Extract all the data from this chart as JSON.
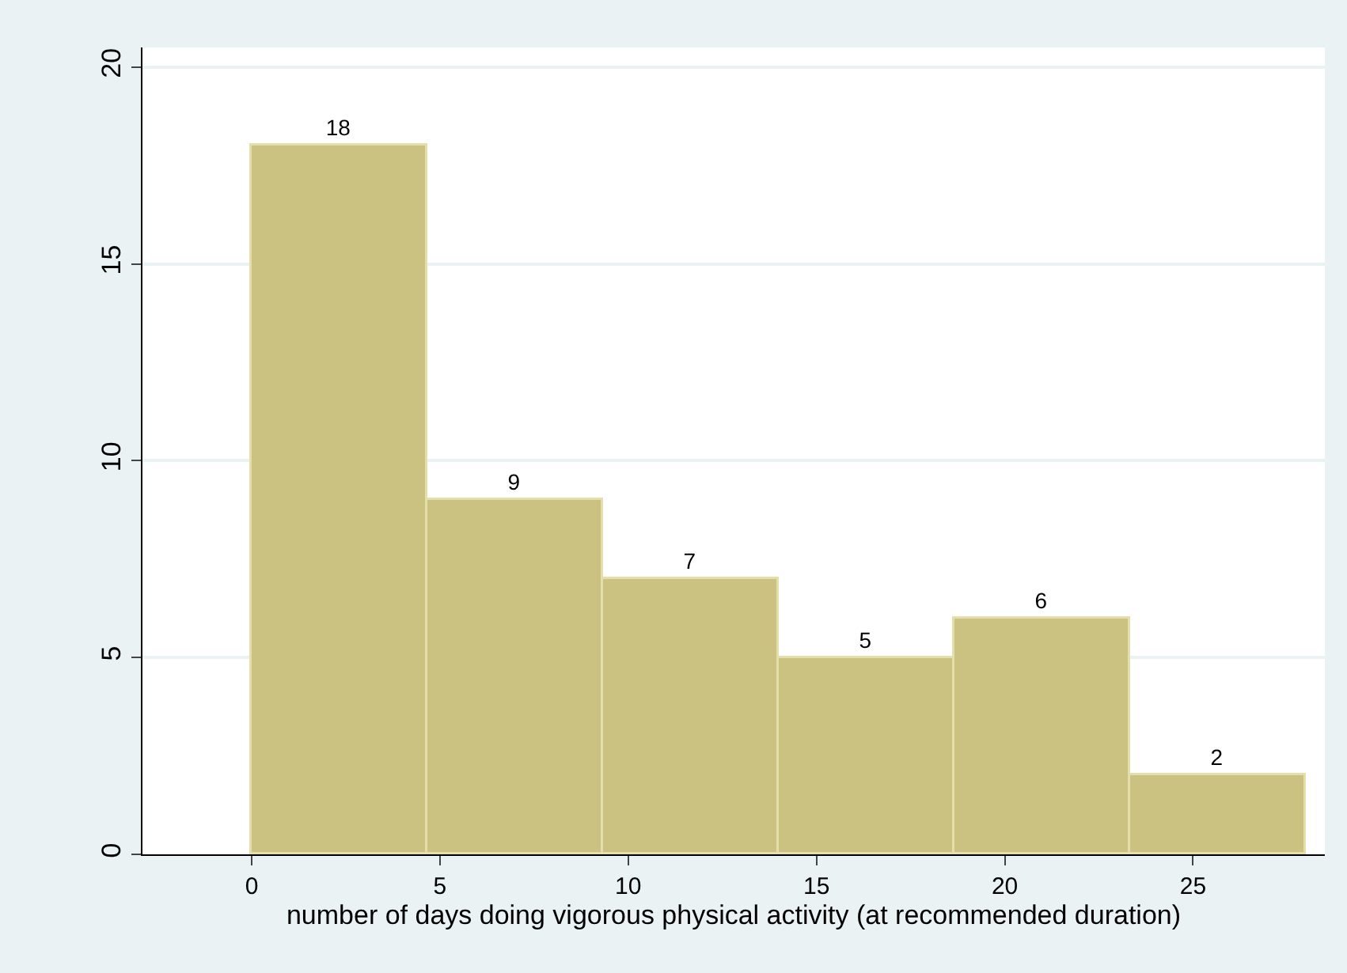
{
  "chart_data": {
    "type": "histogram",
    "xlabel": "number of days doing vigorous physical activity (at recommended duration)",
    "bins": [
      0,
      4.67,
      9.33,
      14,
      18.67,
      23.33,
      28
    ],
    "values": [
      18,
      9,
      7,
      5,
      6,
      2
    ],
    "color": "#cbc281",
    "data_labels": true,
    "xlim": [
      -2.9,
      28.5
    ],
    "xticks": [
      0,
      5,
      10,
      15,
      20,
      25
    ],
    "ylim": [
      0,
      20.5
    ],
    "yticks": [
      0,
      5,
      10,
      15,
      20
    ],
    "grid": "y"
  }
}
